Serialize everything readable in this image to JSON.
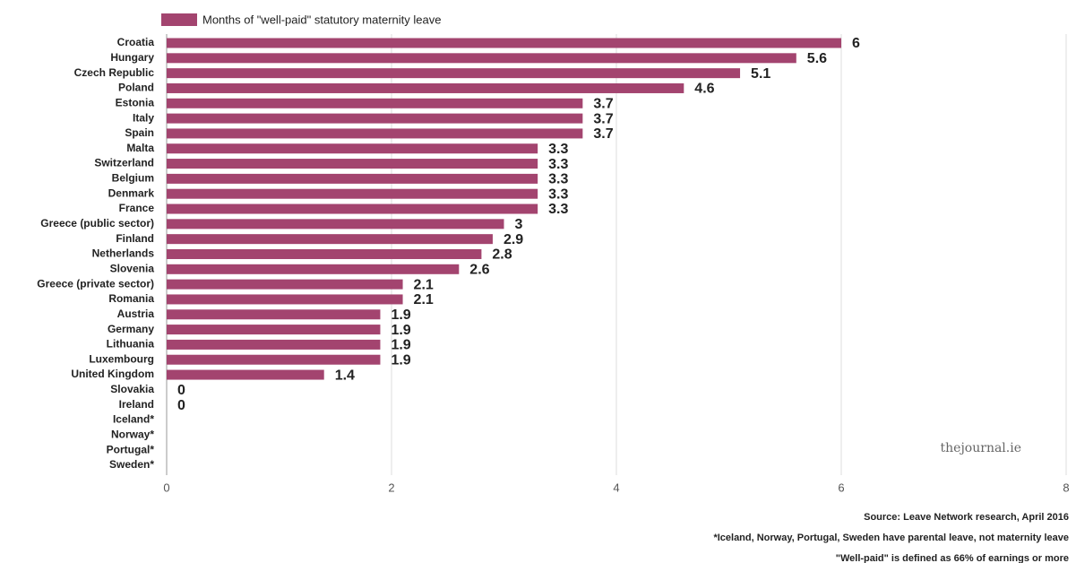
{
  "chart_data": {
    "type": "bar",
    "orientation": "horizontal",
    "categories": [
      "Croatia",
      "Hungary",
      "Czech Republic",
      "Poland",
      "Estonia",
      "Italy",
      "Spain",
      "Malta",
      "Switzerland",
      "Belgium",
      "Denmark",
      "France",
      "Greece (public sector)",
      "Finland",
      "Netherlands",
      "Slovenia",
      "Greece (private sector)",
      "Romania",
      "Austria",
      "Germany",
      "Lithuania",
      "Luxembourg",
      "United Kingdom",
      "Slovakia",
      "Ireland",
      "Iceland*",
      "Norway*",
      "Portugal*",
      "Sweden*"
    ],
    "series": [
      {
        "name": "Months of \"well-paid\" statutory maternity leave",
        "color": "#a3446f",
        "values": [
          6,
          5.6,
          5.1,
          4.6,
          3.7,
          3.7,
          3.7,
          3.3,
          3.3,
          3.3,
          3.3,
          3.3,
          3,
          2.9,
          2.8,
          2.6,
          2.1,
          2.1,
          1.9,
          1.9,
          1.9,
          1.9,
          1.4,
          0,
          0,
          null,
          null,
          null,
          null
        ],
        "value_label_colors": [
          "#a3446f",
          "#a3446f",
          "#a3446f",
          "#a3446f",
          "#a3446f",
          "#a3446f",
          "#a3446f",
          "#a3446f",
          "#a3446f",
          "#a3446f",
          "#a3446f",
          "#a3446f",
          "#a3446f",
          "#a3446f",
          "#a3446f",
          "#a3446f",
          "#a3446f",
          "#a3446f",
          "#a3446f",
          "#a3446f",
          "#a3446f",
          "#a3446f",
          "#a3446f",
          "#a3446f",
          "#5a9e3a",
          null,
          null,
          null,
          null
        ]
      }
    ],
    "xlim": [
      0,
      8
    ],
    "xticks": [
      0,
      2,
      4,
      6,
      8
    ],
    "grid": true,
    "watermark": "thejournal.ie",
    "notes": [
      "Source: Leave Network research, April 2016",
      "*Iceland, Norway, Portugal, Sweden have parental leave, not maternity leave",
      "\"Well-paid\" is defined as 66% of earnings or more"
    ]
  }
}
